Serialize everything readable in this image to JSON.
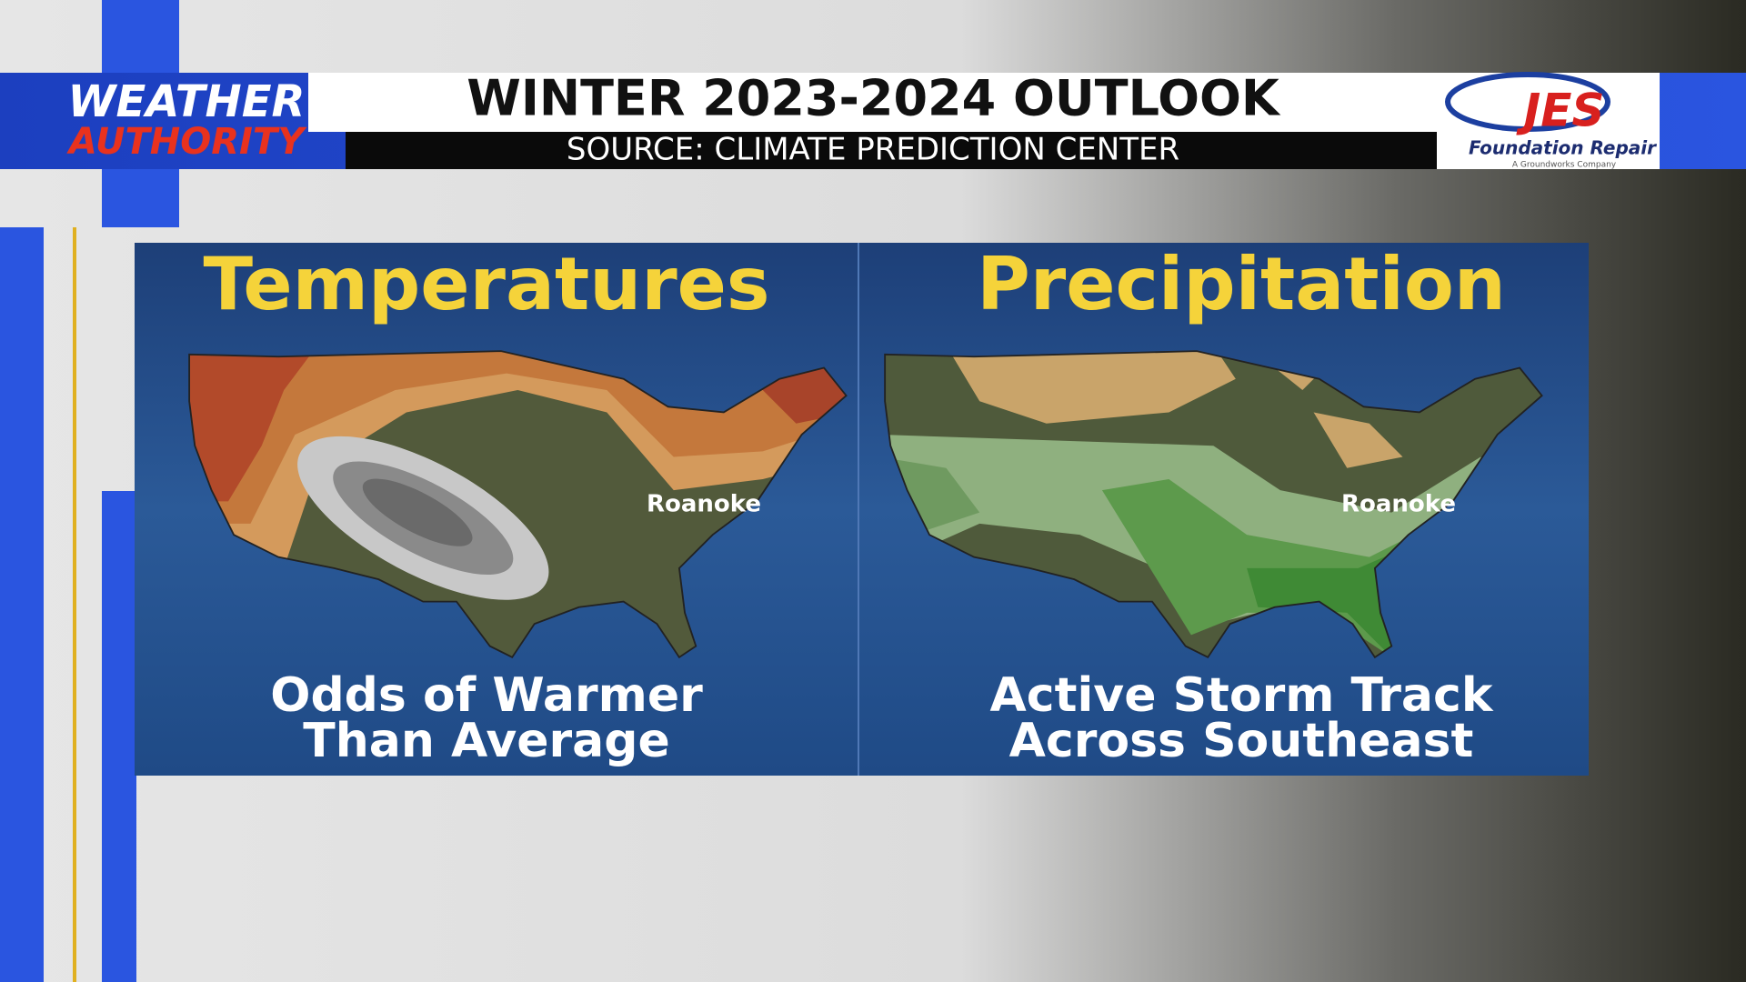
{
  "header": {
    "brand_top": "WEATHER",
    "brand_bottom": "AUTHORITY",
    "title": "WINTER 2023-2024 OUTLOOK",
    "source": "SOURCE: CLIMATE PREDICTION CENTER"
  },
  "sponsor": {
    "name": "JES",
    "tagline": "Foundation Repair",
    "parent": "A Groundworks Company"
  },
  "panels": [
    {
      "title": "Temperatures",
      "city": "Roanoke",
      "caption": [
        "Odds of Warmer",
        "Than Average"
      ]
    },
    {
      "title": "Precipitation",
      "city": "Roanoke",
      "caption": [
        "Active Storm Track",
        "Across Southeast"
      ]
    }
  ]
}
